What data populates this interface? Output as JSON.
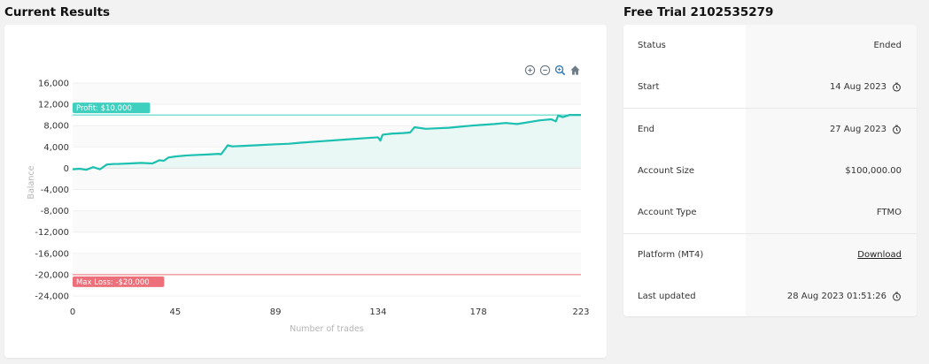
{
  "sections": {
    "results_title": "Current Results",
    "trial_title": "Free Trial 2102535279"
  },
  "toolbar": {
    "icons": [
      "zoom-in-icon",
      "zoom-out-icon",
      "zoom-select-icon",
      "home-reset-icon"
    ]
  },
  "info": {
    "rows": [
      {
        "label": "Status",
        "value": "Ended",
        "clock": false,
        "link": false
      },
      {
        "label": "Start",
        "value": "14 Aug 2023",
        "clock": true,
        "link": false
      },
      {
        "label": "End",
        "value": "27 Aug 2023",
        "clock": true,
        "link": false
      },
      {
        "label": "Account Size",
        "value": "$100,000.00",
        "clock": false,
        "link": false
      },
      {
        "label": "Account Type",
        "value": "FTMO",
        "clock": false,
        "link": false
      },
      {
        "label": "Platform (MT4)",
        "value": "Download",
        "clock": false,
        "link": true
      },
      {
        "label": "Last updated",
        "value": "28 Aug 2023 01:51:26",
        "clock": true,
        "link": false
      }
    ]
  },
  "colors": {
    "line": "#1cc0b0",
    "profit": "#3fcfbf",
    "loss": "#ec6f7a",
    "fill": "#e9f7f5"
  },
  "chart_data": {
    "type": "line",
    "xlabel": "Number of trades",
    "ylabel": "Balance",
    "xlim": [
      0,
      223
    ],
    "ylim": [
      -24000,
      16000
    ],
    "x_ticks": [
      "0",
      "45",
      "89",
      "134",
      "178",
      "223"
    ],
    "x_tick_values": [
      0,
      45,
      89,
      134,
      178,
      223
    ],
    "y_ticks": [
      "16,000",
      "12,000",
      "8,000",
      "4,000",
      "0",
      "-4,000",
      "-8,000",
      "-12,000",
      "-16,000",
      "-20,000",
      "-24,000"
    ],
    "y_tick_values": [
      16000,
      12000,
      8000,
      4000,
      0,
      -4000,
      -8000,
      -12000,
      -16000,
      -20000,
      -24000
    ],
    "annotations": [
      {
        "label": "Profit: $10,000",
        "y": 10000,
        "color": "#3fcfbf"
      },
      {
        "label": "Max Loss: -$20,000",
        "y": -20000,
        "color": "#ec6f7a"
      }
    ],
    "series": [
      {
        "x": [
          0,
          3,
          6,
          9,
          12,
          15,
          18,
          20,
          25,
          30,
          35,
          38,
          40,
          42,
          45,
          50,
          55,
          60,
          64,
          65,
          66,
          68,
          70,
          75,
          80,
          89,
          95,
          100,
          110,
          120,
          130,
          134,
          135,
          136,
          140,
          145,
          148,
          150,
          155,
          160,
          165,
          170,
          175,
          178,
          185,
          190,
          195,
          205,
          210,
          212,
          213,
          215,
          218,
          220,
          223
        ],
        "y": [
          -200,
          -100,
          -300,
          200,
          -200,
          700,
          800,
          800,
          900,
          1000,
          900,
          1500,
          1400,
          2000,
          2200,
          2400,
          2500,
          2600,
          2700,
          2600,
          3100,
          4300,
          4100,
          4200,
          4300,
          4500,
          4600,
          4800,
          5100,
          5400,
          5700,
          5800,
          5200,
          6300,
          6500,
          6600,
          6700,
          7700,
          7400,
          7500,
          7600,
          7800,
          8000,
          8100,
          8300,
          8500,
          8300,
          9000,
          9200,
          8800,
          9900,
          9600,
          10000,
          10000,
          10000
        ]
      }
    ]
  }
}
